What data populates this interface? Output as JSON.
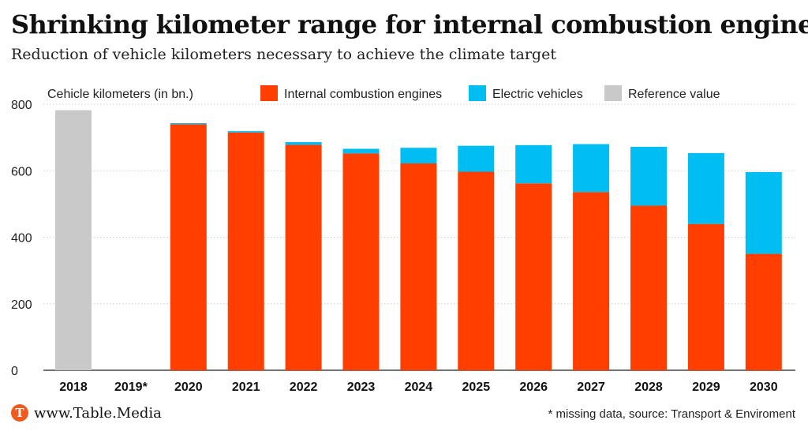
{
  "chart_data": {
    "type": "bar",
    "stacked": true,
    "title": "Shrinking kilometer range for internal combustion engines",
    "subtitle": "Reduction of vehicle kilometers necessary to achieve the climate target",
    "ylabel": "Cehicle kilometers (in bn.)",
    "ylim": [
      0,
      800
    ],
    "yticks": [
      0,
      200,
      400,
      600,
      800
    ],
    "grid": true,
    "legend_position": "top",
    "categories": [
      "2018",
      "2019*",
      "2020",
      "2021",
      "2022",
      "2023",
      "2024",
      "2025",
      "2026",
      "2027",
      "2028",
      "2029",
      "2030"
    ],
    "series": [
      {
        "name": "Internal combustion engines",
        "color": "#ff3e00",
        "values": [
          0,
          0,
          740,
          715,
          678,
          652,
          622,
          597,
          562,
          536,
          495,
          440,
          350
        ]
      },
      {
        "name": "Electric vehicles",
        "color": "#00bdf2",
        "values": [
          0,
          0,
          3,
          4,
          8,
          14,
          47,
          78,
          115,
          144,
          177,
          213,
          246
        ]
      },
      {
        "name": "Reference value",
        "color": "#c9c9c9",
        "values": [
          782,
          0,
          0,
          0,
          0,
          0,
          0,
          0,
          0,
          0,
          0,
          0,
          0
        ]
      }
    ]
  },
  "footer": {
    "brand_logo": "T",
    "brand": "www.Table.Media",
    "source": "* missing data, source: Transport & Enviroment"
  }
}
